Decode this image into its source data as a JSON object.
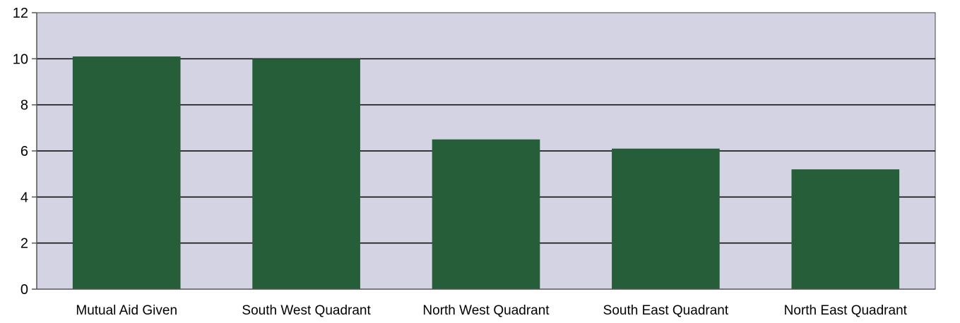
{
  "chart_data": {
    "type": "bar",
    "title": "",
    "xlabel": "",
    "ylabel": "",
    "categories": [
      "Mutual Aid Given",
      "South West Quadrant",
      "North West Quadrant",
      "South East Quadrant",
      "North East Quadrant"
    ],
    "values": [
      10.1,
      10.0,
      6.5,
      6.1,
      5.2
    ],
    "ylim": [
      0,
      12
    ],
    "yticks": [
      "0",
      "2",
      "4",
      "6",
      "8",
      "10",
      "12"
    ],
    "grid": true,
    "legend": "none",
    "colors": {
      "bar": "#275e3a",
      "plot_background": "#d4d3e4",
      "gridline": "#000000",
      "axis": "#555555"
    }
  }
}
